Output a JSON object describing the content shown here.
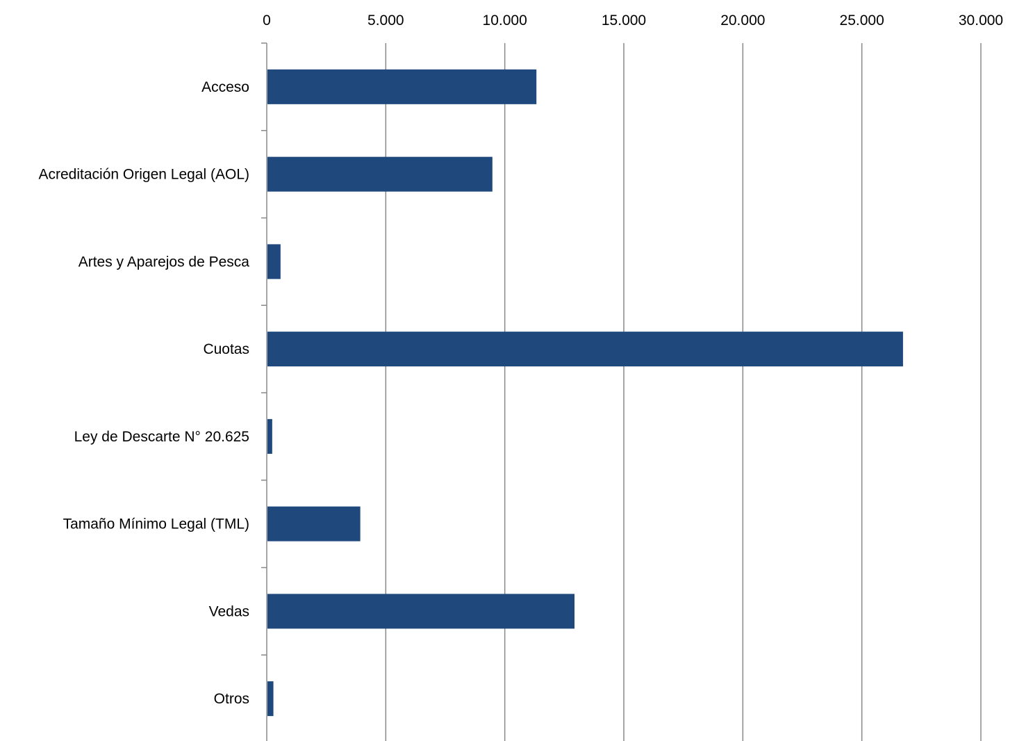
{
  "chart_data": {
    "type": "bar",
    "orientation": "horizontal",
    "categories": [
      "Acceso",
      "Acreditación Origen Legal (AOL)",
      "Artes y Aparejos de Pesca",
      "Cuotas",
      "Ley de Descarte N° 20.625",
      "Tamaño Mínimo Legal (TML)",
      "Vedas",
      "Otros"
    ],
    "values": [
      11300,
      9450,
      550,
      26700,
      200,
      3900,
      12900,
      250
    ],
    "x_ticks": [
      "0",
      "5.000",
      "10.000",
      "15.000",
      "20.000",
      "25.000",
      "30.000"
    ],
    "x_tick_values": [
      0,
      5000,
      10000,
      15000,
      20000,
      25000,
      30000
    ],
    "xlim": [
      0,
      30000
    ],
    "x_axis_position": "top",
    "grid": true,
    "legend": "none",
    "title": "",
    "xlabel": "",
    "ylabel": "",
    "colors": {
      "bar": "#1f497d",
      "grid": "#888888",
      "axis": "#888888"
    }
  }
}
